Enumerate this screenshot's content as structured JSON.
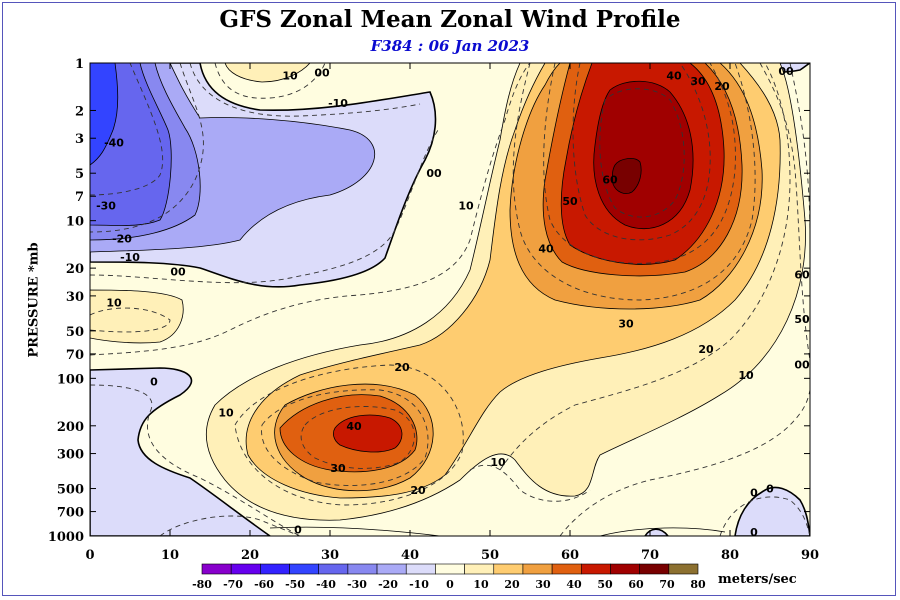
{
  "chart_data": {
    "type": "contour",
    "title": "GFS Zonal Mean Zonal Wind Profile",
    "subtitle": "F384 : 06 Jan 2023",
    "ylabel": "PRESSURE *mb",
    "x_ticks": [
      0,
      10,
      20,
      30,
      40,
      50,
      60,
      70,
      80,
      90
    ],
    "y_ticks": [
      1,
      2,
      3,
      5,
      7,
      10,
      20,
      30,
      50,
      70,
      100,
      200,
      300,
      500,
      700,
      1000
    ],
    "xlim": [
      0,
      90
    ],
    "ylim": [
      1000,
      1
    ],
    "y_scale": "log",
    "colorbar": {
      "levels": [
        -80,
        -70,
        -60,
        -50,
        -40,
        -30,
        -20,
        -10,
        0,
        10,
        20,
        30,
        40,
        50,
        60,
        70,
        80
      ],
      "level_labels": [
        "-80",
        "-70",
        "-60",
        "-50",
        "-40",
        "-30",
        "-20",
        "-10",
        "0",
        "10",
        "20",
        "30",
        "40",
        "50",
        "60",
        "70",
        "80"
      ],
      "colors": [
        "#8800cc",
        "#6600ee",
        "#3322ff",
        "#3344ff",
        "#6666ee",
        "#8888f0",
        "#aaaaf6",
        "#dcdcfa",
        "#fffde0",
        "#fff0b8",
        "#fecc70",
        "#f0a040",
        "#e06010",
        "#c81800",
        "#a00000",
        "#780000",
        "#8c7030"
      ],
      "units": "meters/sec"
    },
    "contour_labels": [
      {
        "text": "10",
        "lat": 25,
        "p": 1.2
      },
      {
        "text": "00",
        "lat": 29,
        "p": 1.15
      },
      {
        "text": "-10",
        "lat": 31,
        "p": 1.8
      },
      {
        "text": "-40",
        "lat": 3,
        "p": 3.2
      },
      {
        "text": "-30",
        "lat": 2,
        "p": 8
      },
      {
        "text": "-20",
        "lat": 4,
        "p": 13
      },
      {
        "text": "-10",
        "lat": 5,
        "p": 17
      },
      {
        "text": "00",
        "lat": 11,
        "p": 21
      },
      {
        "text": "10",
        "lat": 3,
        "p": 33
      },
      {
        "text": "00",
        "lat": 43,
        "p": 5
      },
      {
        "text": "10",
        "lat": 47,
        "p": 8
      },
      {
        "text": "40",
        "lat": 73,
        "p": 1.2
      },
      {
        "text": "30",
        "lat": 76,
        "p": 1.3
      },
      {
        "text": "20",
        "lat": 79,
        "p": 1.4
      },
      {
        "text": "00",
        "lat": 87,
        "p": 1.1
      },
      {
        "text": "60",
        "lat": 65,
        "p": 5.5
      },
      {
        "text": "50",
        "lat": 60,
        "p": 7.5
      },
      {
        "text": "40",
        "lat": 57,
        "p": 15
      },
      {
        "text": "30",
        "lat": 67,
        "p": 45
      },
      {
        "text": "20",
        "lat": 77,
        "p": 65
      },
      {
        "text": "10",
        "lat": 82,
        "p": 95
      },
      {
        "text": "60",
        "lat": 90,
        "p": 22
      },
      {
        "text": "50",
        "lat": 90,
        "p": 42
      },
      {
        "text": "00",
        "lat": 90,
        "p": 82
      },
      {
        "text": "20",
        "lat": 39,
        "p": 85
      },
      {
        "text": "0",
        "lat": 8,
        "p": 105
      },
      {
        "text": "10",
        "lat": 17,
        "p": 165
      },
      {
        "text": "40",
        "lat": 33,
        "p": 200
      },
      {
        "text": "30",
        "lat": 31,
        "p": 370
      },
      {
        "text": "20",
        "lat": 41,
        "p": 510
      },
      {
        "text": "10",
        "lat": 51,
        "p": 340
      },
      {
        "text": "0",
        "lat": 26,
        "p": 910
      },
      {
        "text": "0",
        "lat": 83,
        "p": 530
      },
      {
        "text": "0",
        "lat": 85,
        "p": 500
      },
      {
        "text": "0",
        "lat": 83,
        "p": 970
      }
    ]
  }
}
